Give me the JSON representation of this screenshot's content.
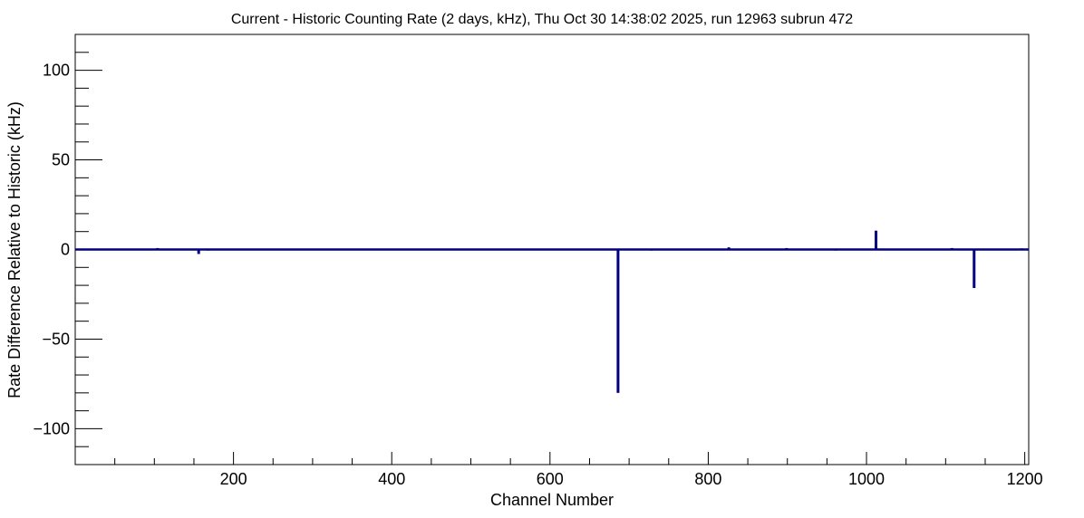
{
  "chart_data": {
    "type": "bar",
    "title": "Current - Historic Counting Rate (2 days, kHz), Thu Oct 30 14:38:02 2025, run 12963 subrun 472",
    "xlabel": "Channel Number",
    "ylabel": "Rate Difference Relative to Historic (kHz)",
    "xlim": [
      0,
      1205
    ],
    "ylim": [
      -120,
      120
    ],
    "x_ticks": [
      200,
      400,
      600,
      800,
      1000,
      1200
    ],
    "y_ticks": [
      -100,
      -50,
      0,
      50,
      100
    ],
    "x_tick_labels": [
      "200",
      "400",
      "600",
      "800",
      "1000",
      "1200"
    ],
    "y_tick_labels": [
      "−100",
      "−50",
      "0",
      "50",
      "100"
    ],
    "grid": false,
    "legend": false,
    "series_color": "#000080",
    "series": [
      {
        "points": [
          [
            70,
            -0.4
          ],
          [
            88,
            -0.4
          ],
          [
            104,
            0.8
          ],
          [
            156,
            -2.5
          ],
          [
            168,
            -0.6
          ],
          [
            176,
            0.5
          ],
          [
            190,
            -0.5
          ],
          [
            240,
            -0.5
          ],
          [
            272,
            -0.4
          ],
          [
            333,
            -0.5
          ],
          [
            348,
            -0.5
          ],
          [
            425,
            -0.4
          ],
          [
            458,
            -0.4
          ],
          [
            492,
            -0.5
          ],
          [
            545,
            -0.5
          ],
          [
            562,
            -0.5
          ],
          [
            584,
            -0.5
          ],
          [
            610,
            -0.5
          ],
          [
            634,
            -0.5
          ],
          [
            686,
            -80
          ],
          [
            712,
            -0.5
          ],
          [
            728,
            -0.6
          ],
          [
            756,
            -0.5
          ],
          [
            826,
            1.2
          ],
          [
            838,
            -0.5
          ],
          [
            899,
            0.8
          ],
          [
            905,
            -0.5
          ],
          [
            945,
            -0.5
          ],
          [
            961,
            -0.6
          ],
          [
            975,
            -0.5
          ],
          [
            1012,
            10.5
          ],
          [
            1054,
            -0.4
          ],
          [
            1074,
            -0.5
          ],
          [
            1108,
            0.8
          ],
          [
            1136,
            -21.5
          ],
          [
            1196,
            0.6
          ]
        ]
      }
    ]
  }
}
